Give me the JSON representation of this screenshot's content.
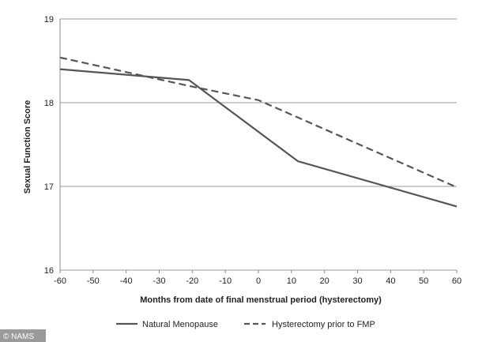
{
  "chart_data": {
    "type": "line",
    "xlabel": "Months from date of final menstrual period (hysterectomy)",
    "ylabel": "Sexual Function Score",
    "xlim": [
      -60,
      60
    ],
    "ylim": [
      16,
      19
    ],
    "x_ticks": [
      "-60",
      "-50",
      "-40",
      "-30",
      "-20",
      "-10",
      "0",
      "10",
      "20",
      "30",
      "40",
      "50",
      "60"
    ],
    "y_ticks": [
      "16",
      "17",
      "18",
      "19"
    ],
    "grid": "horizontal",
    "legend_position": "bottom",
    "series": [
      {
        "name": "Natural Menopause",
        "style": "solid",
        "color": "#555555",
        "points": [
          [
            -60,
            18.4
          ],
          [
            -21,
            18.27
          ],
          [
            12,
            17.3
          ],
          [
            60,
            16.76
          ]
        ]
      },
      {
        "name": "Hysterectomy prior to FMP",
        "style": "dashed",
        "color": "#555555",
        "points": [
          [
            -60,
            18.54
          ],
          [
            -21,
            18.2
          ],
          [
            0,
            18.03
          ],
          [
            60,
            16.99
          ]
        ]
      }
    ]
  },
  "watermark": "© NAMS"
}
